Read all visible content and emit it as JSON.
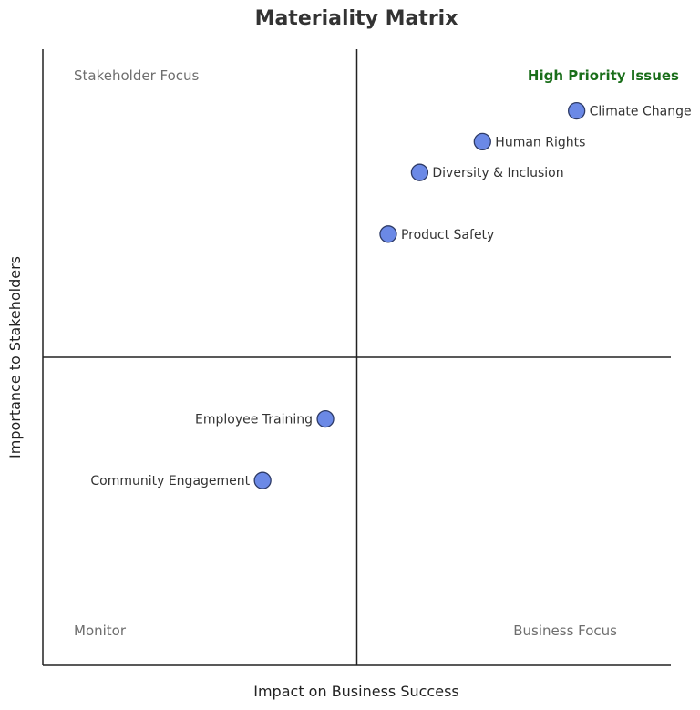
{
  "chart_data": {
    "type": "scatter",
    "title": "Materiality Matrix",
    "xlabel": "Impact on Business Success",
    "ylabel": "Importance to Stakeholders",
    "xlim": [
      0,
      10
    ],
    "ylim": [
      0,
      10
    ],
    "grid": false,
    "quadrant_lines": {
      "x": 5,
      "y": 5
    },
    "quadrant_labels": [
      {
        "text": "Stakeholder Focus",
        "quadrant": "top-left"
      },
      {
        "text": "High Priority Issues",
        "quadrant": "top-right",
        "color": "#1a6e1a"
      },
      {
        "text": "Monitor",
        "quadrant": "bottom-left"
      },
      {
        "text": "Business Focus",
        "quadrant": "bottom-right"
      }
    ],
    "points": [
      {
        "label": "Climate Change",
        "x": 8.5,
        "y": 9.0,
        "label_side": "right"
      },
      {
        "label": "Human Rights",
        "x": 7.0,
        "y": 8.5,
        "label_side": "right"
      },
      {
        "label": "Diversity & Inclusion",
        "x": 6.0,
        "y": 8.0,
        "label_side": "right"
      },
      {
        "label": "Product Safety",
        "x": 5.5,
        "y": 7.0,
        "label_side": "right"
      },
      {
        "label": "Employee Training",
        "x": 4.5,
        "y": 4.0,
        "label_side": "left"
      },
      {
        "label": "Community Engagement",
        "x": 3.5,
        "y": 3.0,
        "label_side": "left"
      }
    ],
    "marker_color": "#6b89e6"
  }
}
